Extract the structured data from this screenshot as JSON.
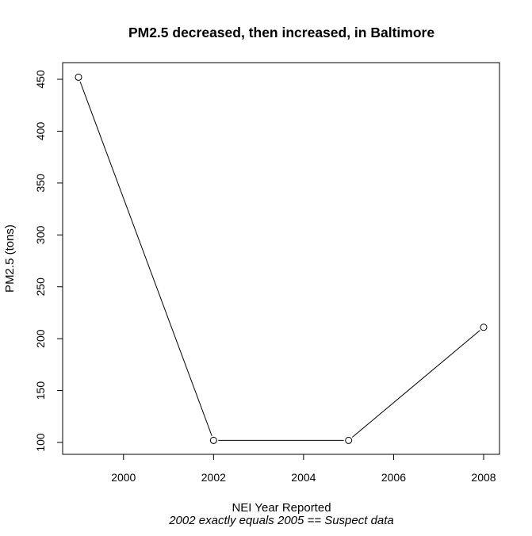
{
  "chart_data": {
    "type": "line",
    "title": "PM2.5 decreased, then increased, in Baltimore",
    "xlabel": "NEI Year Reported",
    "ylabel": "PM2.5 (tons)",
    "subtitle": "2002 exactly equals 2005 == Suspect data",
    "x": [
      1999,
      2002,
      2005,
      2008
    ],
    "y": [
      452,
      102,
      102,
      211
    ],
    "xlim": [
      1999,
      2008
    ],
    "ylim": [
      100,
      450
    ],
    "xticks": [
      2000,
      2002,
      2004,
      2006,
      2008
    ],
    "yticks": [
      100,
      150,
      200,
      250,
      300,
      350,
      400,
      450
    ],
    "markers": "open-circle",
    "grid": false,
    "legend": "none"
  }
}
